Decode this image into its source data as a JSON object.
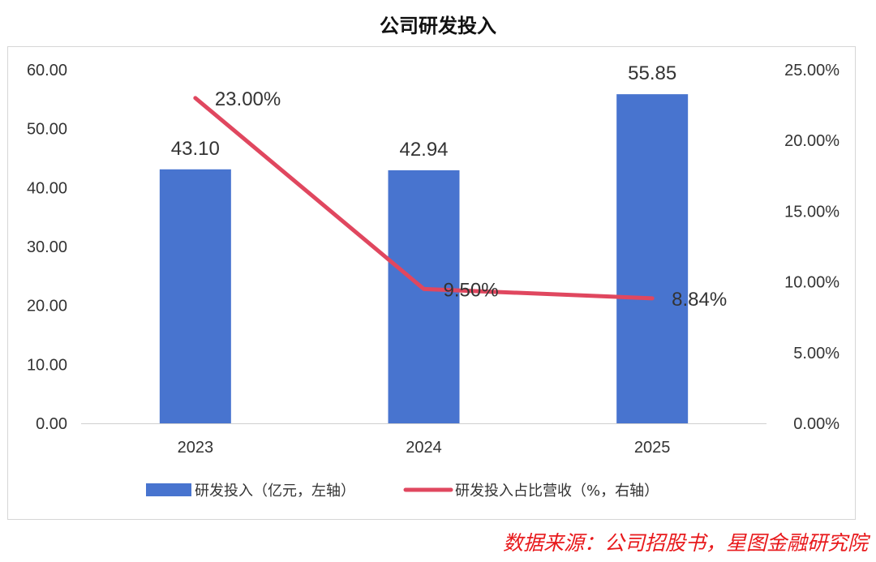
{
  "title": "公司研发投入",
  "source": "数据来源：公司招股书，星图金融研究院",
  "colors": {
    "bar": "#4874cf",
    "line": "#e0475f",
    "text": "#333333",
    "source": "#e8191c"
  },
  "chart_data": {
    "type": "bar",
    "title": "公司研发投入",
    "categories": [
      "2023",
      "2024",
      "2025"
    ],
    "series": [
      {
        "name": "研发投入（亿元，左轴）",
        "type": "bar",
        "axis": "left",
        "values": [
          43.1,
          42.94,
          55.85
        ],
        "labels": [
          "43.10",
          "42.94",
          "55.85"
        ]
      },
      {
        "name": "研发投入占比营收（%，右轴）",
        "type": "line",
        "axis": "right",
        "values": [
          23.0,
          9.5,
          8.84
        ],
        "labels": [
          "23.00%",
          "9.50%",
          "8.84%"
        ]
      }
    ],
    "y_left": {
      "range": [
        0,
        60
      ],
      "ticks": [
        "0.00",
        "10.00",
        "20.00",
        "30.00",
        "40.00",
        "50.00",
        "60.00"
      ]
    },
    "y_right": {
      "range": [
        0,
        25
      ],
      "ticks": [
        "0.00%",
        "5.00%",
        "10.00%",
        "15.00%",
        "20.00%",
        "25.00%"
      ]
    },
    "grid": false,
    "legend_position": "bottom"
  }
}
